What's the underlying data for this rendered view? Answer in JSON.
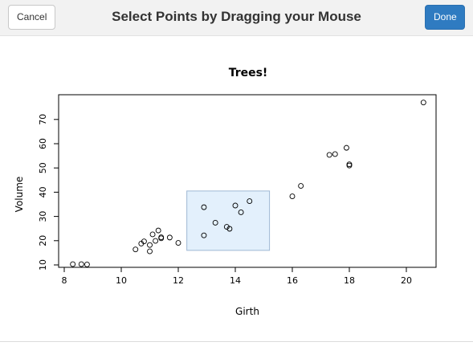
{
  "window": {
    "title": "Select Points by Dragging your Mouse",
    "cancel_label": "Cancel",
    "done_label": "Done"
  },
  "colors": {
    "done_button": "#2f7bc1",
    "brush_fill": "#e3f0fc",
    "brush_stroke": "#9fb8d4"
  },
  "chart_data": {
    "type": "scatter",
    "title": "Trees!",
    "xlabel": "Girth",
    "ylabel": "Volume",
    "xlim": [
      8,
      21
    ],
    "ylim": [
      9,
      79
    ],
    "x_ticks": [
      8,
      10,
      12,
      14,
      16,
      18,
      20
    ],
    "y_ticks": [
      10,
      20,
      30,
      40,
      50,
      60,
      70
    ],
    "grid": false,
    "legend": "none",
    "points": [
      [
        8.3,
        10.3
      ],
      [
        8.6,
        10.3
      ],
      [
        8.8,
        10.2
      ],
      [
        10.5,
        16.4
      ],
      [
        10.7,
        18.8
      ],
      [
        10.8,
        19.7
      ],
      [
        11.0,
        15.6
      ],
      [
        11.0,
        18.2
      ],
      [
        11.1,
        22.6
      ],
      [
        11.2,
        19.9
      ],
      [
        11.3,
        24.2
      ],
      [
        11.4,
        21.0
      ],
      [
        11.4,
        21.4
      ],
      [
        11.7,
        21.3
      ],
      [
        12.0,
        19.1
      ],
      [
        12.9,
        22.2
      ],
      [
        12.9,
        33.8
      ],
      [
        13.3,
        27.4
      ],
      [
        13.7,
        25.7
      ],
      [
        13.8,
        24.9
      ],
      [
        14.0,
        34.5
      ],
      [
        14.2,
        31.7
      ],
      [
        14.5,
        36.3
      ],
      [
        16.0,
        38.3
      ],
      [
        16.3,
        42.6
      ],
      [
        17.3,
        55.4
      ],
      [
        17.5,
        55.7
      ],
      [
        17.9,
        58.3
      ],
      [
        18.0,
        51.5
      ],
      [
        18.0,
        51.0
      ],
      [
        20.6,
        77.0
      ]
    ],
    "brush": {
      "xmin": 12.3,
      "xmax": 15.2,
      "ymin": 16.0,
      "ymax": 40.5
    }
  }
}
